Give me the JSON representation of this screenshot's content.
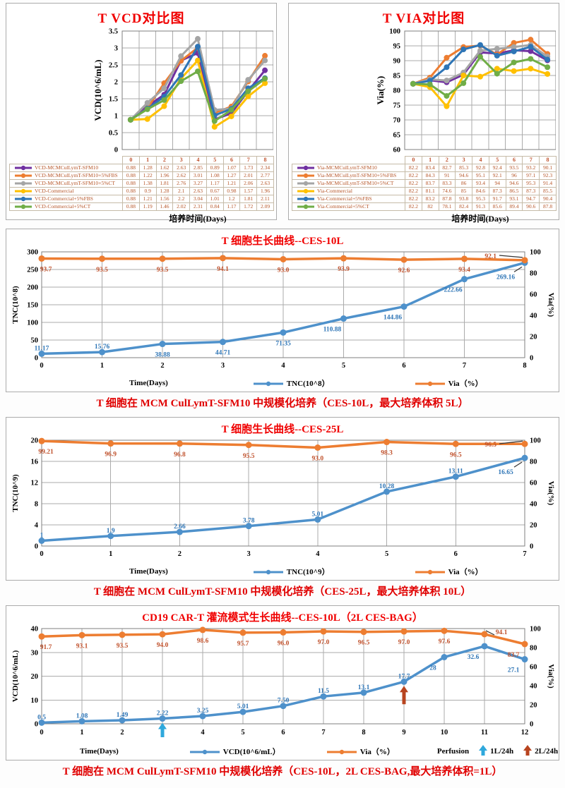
{
  "chart_data": [
    {
      "id": "vcd",
      "type": "line",
      "title": "T VCD对比图",
      "ylabel": "VCD(10^6/mL)",
      "xlabel": "培养时间(Days)",
      "ylim": [
        0,
        3.5
      ],
      "yticks": [
        "3.5",
        "3",
        "2.5",
        "2",
        "1.5",
        "1",
        "0.5",
        "0"
      ],
      "categories": [
        "0",
        "1",
        "2",
        "3",
        "4",
        "5",
        "6",
        "7",
        "8"
      ],
      "grid": true,
      "legend_position": "table-left",
      "series": [
        {
          "name": "VCD-MCMCulLymT-SFM10",
          "color": "#7030A0",
          "values": [
            "0.88",
            "1.28",
            "1.62",
            "2.63",
            "2.85",
            "0.89",
            "1.07",
            "1.73",
            "2.34"
          ]
        },
        {
          "name": "VCD-MCMCulLymT-SFM10+5%FBS",
          "color": "#ED7D31",
          "values": [
            "0.88",
            "1.22",
            "1.96",
            "2.62",
            "3.01",
            "1.08",
            "1.27",
            "2.01",
            "2.77"
          ]
        },
        {
          "name": "VCD-MCMCulLymT-SFM10+5%CT",
          "color": "#A5A5A5",
          "values": [
            "0.88",
            "1.38",
            "1.81",
            "2.76",
            "3.27",
            "1.17",
            "1.21",
            "2.06",
            "2.63"
          ]
        },
        {
          "name": "VCD-Commercial",
          "color": "#FFC000",
          "values": [
            "0.88",
            "0.9",
            "1.28",
            "2.1",
            "2.63",
            "0.67",
            "0.98",
            "1.57",
            "1.96"
          ]
        },
        {
          "name": "VCD-Commercial+5%FBS",
          "color": "#2E75B6",
          "values": [
            "0.88",
            "1.21",
            "1.56",
            "2.2",
            "3.04",
            "1.01",
            "1.2",
            "1.81",
            "2.11"
          ]
        },
        {
          "name": "VCD-Commercial+5%CT",
          "color": "#70AD47",
          "values": [
            "0.88",
            "1.19",
            "1.46",
            "2.02",
            "2.31",
            "0.84",
            "1.17",
            "1.72",
            "2.09"
          ]
        }
      ]
    },
    {
      "id": "via",
      "type": "line",
      "title": "T VIA对比图",
      "ylabel": "Via(%)",
      "xlabel": "培养时间(Days)",
      "ylim": [
        60,
        100
      ],
      "yticks": [
        "100",
        "95",
        "90",
        "85",
        "80",
        "75",
        "70",
        "65",
        "60"
      ],
      "categories": [
        "0",
        "1",
        "2",
        "3",
        "4",
        "5",
        "6",
        "7",
        "8"
      ],
      "grid": true,
      "legend_position": "table-left",
      "series": [
        {
          "name": "Via-MCMCulLymT-SFM10",
          "color": "#7030A0",
          "values": [
            "82.2",
            "83.4",
            "82.7",
            "85.3",
            "92.8",
            "92.4",
            "93.5",
            "93.2",
            "90.1"
          ]
        },
        {
          "name": "Via-MCMCulLymT-SFM10+5%FBS",
          "color": "#ED7D31",
          "values": [
            "82.2",
            "84.3",
            "91",
            "94.6",
            "95.1",
            "92.1",
            "96",
            "97.1",
            "92.3"
          ]
        },
        {
          "name": "Via-MCMCulLymT-SFM10+5%CT",
          "color": "#A5A5A5",
          "values": [
            "82.2",
            "83.7",
            "83.3",
            "86",
            "93.4",
            "94",
            "94.6",
            "95.3",
            "91.4"
          ]
        },
        {
          "name": "Via-Commercial",
          "color": "#FFC000",
          "values": [
            "82.2",
            "81.1",
            "74.6",
            "85",
            "84.6",
            "87.3",
            "86.5",
            "87.3",
            "85.5"
          ]
        },
        {
          "name": "Via-Commercial+5%FBS",
          "color": "#2E75B6",
          "values": [
            "82.2",
            "83.2",
            "87.8",
            "93.8",
            "95.3",
            "91.7",
            "93.1",
            "94.7",
            "90.4"
          ]
        },
        {
          "name": "Via-Commercial+5%CT",
          "color": "#70AD47",
          "values": [
            "82.2",
            "82",
            "78.1",
            "82.4",
            "91.3",
            "85.6",
            "89.4",
            "90.6",
            "87.8"
          ]
        }
      ]
    },
    {
      "id": "ces10l",
      "type": "line-dual",
      "title": "T 细胞生长曲线--CES-10L",
      "xlabel": "Time(Days)",
      "ylabel_left": "TNC(10^8)",
      "ylabel_right": "Via(%)",
      "x": [
        "0",
        "1",
        "2",
        "3",
        "4",
        "5",
        "6",
        "7",
        "8"
      ],
      "left_axis": {
        "min": 0,
        "max": 300,
        "ticks": [
          "300",
          "250",
          "200",
          "150",
          "100",
          "50",
          "0"
        ]
      },
      "right_axis": {
        "min": 0,
        "max": 100,
        "ticks": [
          "100",
          "80",
          "60",
          "40",
          "20",
          "0"
        ]
      },
      "series": [
        {
          "name": "TNC(10^8）",
          "axis": "left",
          "color": "#4E91CB",
          "values": [
            11.17,
            15.76,
            38.88,
            44.71,
            71.35,
            110.88,
            144.86,
            222.66,
            269.16
          ],
          "labels": [
            "11.17",
            "15.76",
            "38.88",
            "44.71",
            "71.35",
            "110.88",
            "144.86",
            "222.66",
            "269.16"
          ]
        },
        {
          "name": "Via（%）",
          "axis": "right",
          "color": "#ED7D31",
          "values": [
            93.7,
            93.5,
            93.5,
            94.1,
            93.0,
            93.9,
            92.6,
            93.4,
            92.1
          ],
          "labels": [
            "93.7",
            "93.5",
            "93.5",
            "94.1",
            "93.0",
            "93.9",
            "92.6",
            "93.4",
            "92.1"
          ]
        }
      ],
      "caption": "T 细胞在 MCM CulLymT-SFM10 中规模化培养（CES-10L，最大培养体积 5L）"
    },
    {
      "id": "ces25l",
      "type": "line-dual",
      "title": "T 细胞生长曲线--CES-25L",
      "xlabel": "Time(Days)",
      "ylabel_left": "TNC(10^9)",
      "ylabel_right": "Via(%)",
      "x": [
        "0",
        "1",
        "2",
        "3",
        "4",
        "5",
        "6",
        "7"
      ],
      "left_axis": {
        "min": 0,
        "max": 20,
        "ticks": [
          "20",
          "16",
          "12",
          "8",
          "4",
          "0"
        ]
      },
      "right_axis": {
        "min": 0,
        "max": 100,
        "ticks": [
          "100",
          "80",
          "60",
          "40",
          "20",
          "0"
        ]
      },
      "series": [
        {
          "name": "TNC(10^9）",
          "axis": "left",
          "color": "#4E91CB",
          "values": [
            1,
            1.9,
            2.66,
            3.78,
            5.01,
            10.28,
            13.11,
            16.65
          ],
          "labels": [
            "1",
            "1.9",
            "2.66",
            "3.78",
            "5.01",
            "10.28",
            "13.11",
            "16.65"
          ]
        },
        {
          "name": "Via（%）",
          "axis": "right",
          "color": "#ED7D31",
          "values": [
            99.21,
            96.9,
            96.8,
            95.5,
            93.0,
            98.3,
            96.5,
            96.5
          ],
          "labels": [
            "99.21",
            "96.9",
            "96.8",
            "95.5",
            "93.0",
            "98.3",
            "96.5",
            "96.5"
          ]
        }
      ],
      "caption": "T 细胞在 MCM CulLymT-SFM10 中规模化培养（CES-25L，最大培养体积 10L）"
    },
    {
      "id": "cart",
      "type": "line-dual",
      "title": "CD19 CAR-T 灌流模式生长曲线--CES-10L（2L CES-BAG）",
      "xlabel": "Time(Days)",
      "ylabel_left": "VCD(10^6/mL)",
      "ylabel_right": "Via(%)",
      "x": [
        "0",
        "1",
        "2",
        "3",
        "4",
        "5",
        "6",
        "7",
        "8",
        "9",
        "10",
        "11",
        "12"
      ],
      "left_axis": {
        "min": 0,
        "max": 40,
        "ticks": [
          "40",
          "30",
          "20",
          "10",
          "0"
        ]
      },
      "right_axis": {
        "min": 0,
        "max": 100,
        "ticks": [
          "100",
          "80",
          "60",
          "40",
          "20",
          "0"
        ]
      },
      "series": [
        {
          "name": "VCD(10^6/mL）",
          "axis": "left",
          "color": "#4E91CB",
          "values": [
            0.5,
            1.08,
            1.49,
            2.22,
            3.25,
            5.01,
            7.5,
            11.5,
            13.1,
            17.7,
            28,
            32.6,
            27.1
          ],
          "labels": [
            "0.5",
            "1.08",
            "1.49",
            "2.22",
            "3.25",
            "5.01",
            "7.50",
            "11.5",
            "13.1",
            "17.7",
            "28",
            "32.6",
            "27.1"
          ]
        },
        {
          "name": "Via（%）",
          "axis": "right",
          "color": "#ED7D31",
          "values": [
            91.7,
            93.1,
            93.5,
            94.0,
            98.6,
            95.7,
            96.0,
            97.0,
            96.5,
            97.0,
            97.6,
            94.1,
            83.7
          ],
          "labels": [
            "91.7",
            "93.1",
            "93.5",
            "94.0",
            "98.6",
            "95.7",
            "96.0",
            "97.0",
            "96.5",
            "97.0",
            "97.6",
            "94.1",
            "83.7"
          ]
        }
      ],
      "perfusion": {
        "label": "Perfusion",
        "marks": [
          {
            "day": 3,
            "label": "1L/24h",
            "color": "#2FA8DC"
          },
          {
            "day": 9,
            "label": "2L/24h",
            "color": "#B8441F"
          }
        ]
      },
      "caption": "T 细胞在 MCM CulLymT-SFM10 中规模化培养（CES-10L，2L CES-BAG,最大培养体积=1L）"
    }
  ],
  "colors": {
    "title_red": "#F00000",
    "caption_red": "#E00000",
    "tnc_label_blue": "#2E75B6",
    "via_label_red": "#C0522D",
    "grid_gray": "#ABABAB"
  }
}
